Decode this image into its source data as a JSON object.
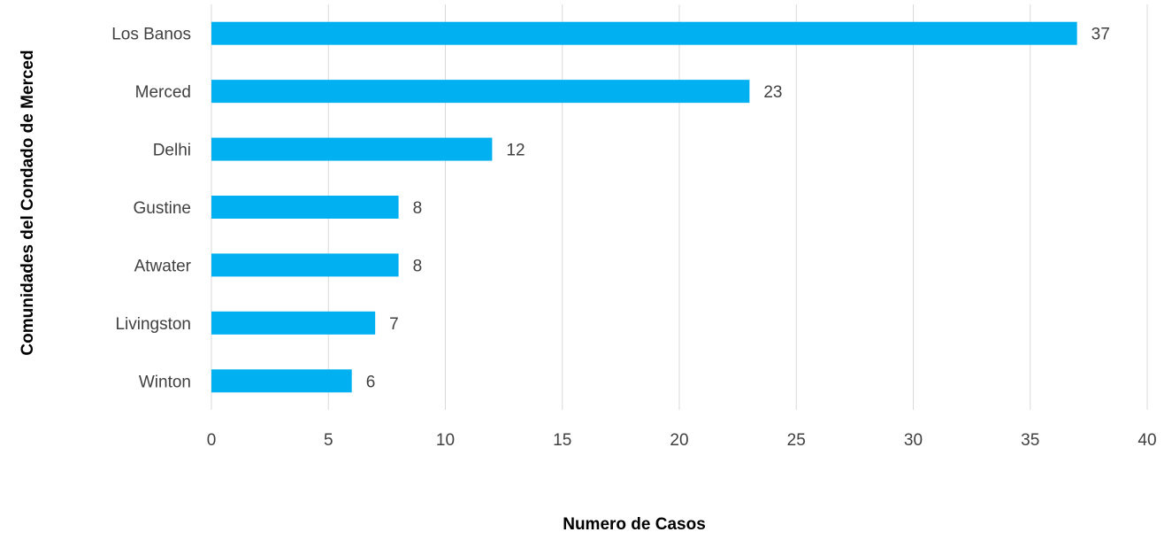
{
  "chart_data": {
    "type": "bar",
    "orientation": "horizontal",
    "categories": [
      "Los Banos",
      "Merced",
      "Delhi",
      "Gustine",
      "Atwater",
      "Livingston",
      "Winton"
    ],
    "values": [
      37,
      23,
      12,
      8,
      8,
      7,
      6
    ],
    "data_labels": [
      "37",
      "23",
      "12",
      "8",
      "8",
      "7",
      "6"
    ],
    "xlabel": "Numero de Casos",
    "ylabel": "Comunidades del Condado de Merced",
    "xlim": [
      0,
      40
    ],
    "xticks": [
      0,
      5,
      10,
      15,
      20,
      25,
      30,
      35,
      40
    ],
    "grid": "vertical",
    "legend": "none",
    "colors": {
      "bar": "#00B0F0",
      "grid": "#D9D9D9",
      "text": "#404040"
    }
  }
}
